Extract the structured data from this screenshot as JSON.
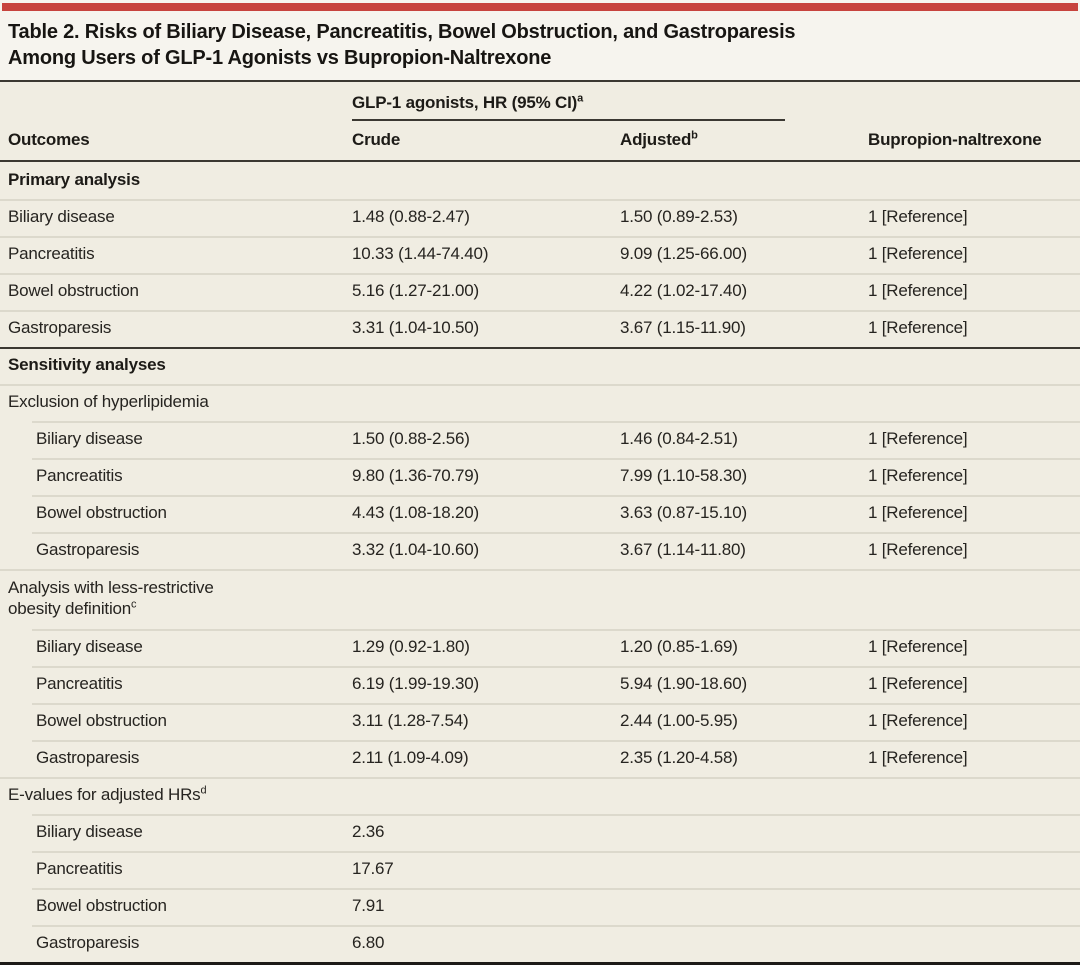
{
  "page": {
    "accent_bar_color": "#c7433d",
    "title_line1": "Table 2. Risks of Biliary Disease, Pancreatitis, Bowel Obstruction, and Gastroparesis",
    "title_line2": "Among Users of GLP-1 Agonists vs Bupropion-Naltrexone"
  },
  "table": {
    "spanner_label": "GLP-1 agonists, HR (95% CI)",
    "spanner_sup": "a",
    "col_outcomes": "Outcomes",
    "col_crude": "Crude",
    "col_adjusted": "Adjusted",
    "col_adjusted_sup": "b",
    "col_comparator": "Bupropion-naltrexone",
    "rows": [
      {
        "label": "Primary analysis",
        "sup": "",
        "crude": "",
        "adjusted": "",
        "ref": ""
      },
      {
        "label": "Biliary disease",
        "crude": "1.48 (0.88-2.47)",
        "adjusted": "1.50 (0.89-2.53)",
        "ref": "1 [Reference]"
      },
      {
        "label": "Pancreatitis",
        "crude": "10.33 (1.44-74.40)",
        "adjusted": "9.09 (1.25-66.00)",
        "ref": "1 [Reference]"
      },
      {
        "label": "Bowel obstruction",
        "crude": "5.16 (1.27-21.00)",
        "adjusted": "4.22 (1.02-17.40)",
        "ref": "1 [Reference]"
      },
      {
        "label": "Gastroparesis",
        "crude": "3.31 (1.04-10.50)",
        "adjusted": "3.67 (1.15-11.90)",
        "ref": "1 [Reference]"
      },
      {
        "label": "Sensitivity analyses",
        "sup": "",
        "crude": "",
        "adjusted": "",
        "ref": ""
      },
      {
        "label": "Exclusion of hyperlipidemia",
        "sup": "",
        "crude": "",
        "adjusted": "",
        "ref": ""
      },
      {
        "label": "Biliary disease",
        "crude": "1.50 (0.88-2.56)",
        "adjusted": "1.46 (0.84-2.51)",
        "ref": "1 [Reference]"
      },
      {
        "label": "Pancreatitis",
        "crude": "9.80 (1.36-70.79)",
        "adjusted": "7.99 (1.10-58.30)",
        "ref": "1 [Reference]"
      },
      {
        "label": "Bowel obstruction",
        "crude": "4.43 (1.08-18.20)",
        "adjusted": "3.63 (0.87-15.10)",
        "ref": "1 [Reference]"
      },
      {
        "label": "Gastroparesis",
        "crude": "3.32 (1.04-10.60)",
        "adjusted": "3.67 (1.14-11.80)",
        "ref": "1 [Reference]"
      },
      {
        "label": "Analysis with less-restrictive",
        "label2": "obesity definition",
        "sup": "c",
        "crude": "",
        "adjusted": "",
        "ref": ""
      },
      {
        "label": "Biliary disease",
        "crude": "1.29 (0.92-1.80)",
        "adjusted": "1.20 (0.85-1.69)",
        "ref": "1 [Reference]"
      },
      {
        "label": "Pancreatitis",
        "crude": "6.19 (1.99-19.30)",
        "adjusted": "5.94 (1.90-18.60)",
        "ref": "1 [Reference]"
      },
      {
        "label": "Bowel obstruction",
        "crude": "3.11 (1.28-7.54)",
        "adjusted": "2.44 (1.00-5.95)",
        "ref": "1 [Reference]"
      },
      {
        "label": "Gastroparesis",
        "crude": "2.11 (1.09-4.09)",
        "adjusted": "2.35 (1.20-4.58)",
        "ref": "1 [Reference]"
      },
      {
        "label": "E-values for adjusted HRs",
        "sup": "d",
        "crude": "",
        "adjusted": "",
        "ref": ""
      },
      {
        "label": "Biliary disease",
        "crude": "2.36",
        "adjusted": "",
        "ref": ""
      },
      {
        "label": "Pancreatitis",
        "crude": "17.67",
        "adjusted": "",
        "ref": ""
      },
      {
        "label": "Bowel obstruction",
        "crude": "7.91",
        "adjusted": "",
        "ref": ""
      },
      {
        "label": "Gastroparesis",
        "crude": "6.80",
        "adjusted": "",
        "ref": ""
      }
    ]
  }
}
